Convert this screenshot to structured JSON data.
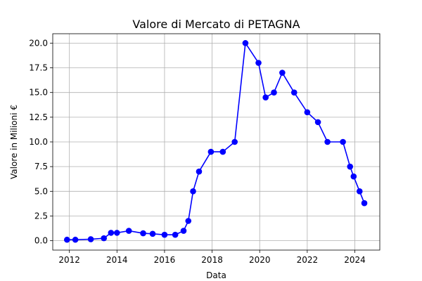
{
  "chart_data": {
    "type": "line",
    "title": "Valore di Mercato di PETAGNA",
    "xlabel": "Data",
    "ylabel": "Valore in Milioni €",
    "xlim": [
      2011.3,
      2025.05
    ],
    "ylim": [
      -0.95,
      20.95
    ],
    "xticks": [
      2012,
      2014,
      2016,
      2018,
      2020,
      2022,
      2024
    ],
    "yticks": [
      0.0,
      2.5,
      5.0,
      7.5,
      10.0,
      12.5,
      15.0,
      17.5,
      20.0
    ],
    "ytick_labels": [
      "0.0",
      "2.5",
      "5.0",
      "7.5",
      "10.0",
      "12.5",
      "15.0",
      "17.5",
      "20.0"
    ],
    "grid": true,
    "series": [
      {
        "color": "#0000ff",
        "marker": "circle",
        "points": [
          {
            "x": 2011.9,
            "y": 0.1
          },
          {
            "x": 2012.25,
            "y": 0.1
          },
          {
            "x": 2012.9,
            "y": 0.15
          },
          {
            "x": 2013.45,
            "y": 0.25
          },
          {
            "x": 2013.75,
            "y": 0.8
          },
          {
            "x": 2014.0,
            "y": 0.8
          },
          {
            "x": 2014.5,
            "y": 1.0
          },
          {
            "x": 2015.1,
            "y": 0.75
          },
          {
            "x": 2015.5,
            "y": 0.7
          },
          {
            "x": 2016.0,
            "y": 0.6
          },
          {
            "x": 2016.45,
            "y": 0.6
          },
          {
            "x": 2016.8,
            "y": 1.0
          },
          {
            "x": 2017.0,
            "y": 2.0
          },
          {
            "x": 2017.2,
            "y": 5.0
          },
          {
            "x": 2017.45,
            "y": 7.0
          },
          {
            "x": 2017.95,
            "y": 9.0
          },
          {
            "x": 2018.45,
            "y": 9.0
          },
          {
            "x": 2018.95,
            "y": 10.0
          },
          {
            "x": 2019.4,
            "y": 20.0
          },
          {
            "x": 2019.95,
            "y": 18.0
          },
          {
            "x": 2020.25,
            "y": 14.5
          },
          {
            "x": 2020.6,
            "y": 15.0
          },
          {
            "x": 2020.95,
            "y": 17.0
          },
          {
            "x": 2021.45,
            "y": 15.0
          },
          {
            "x": 2022.0,
            "y": 13.0
          },
          {
            "x": 2022.45,
            "y": 12.0
          },
          {
            "x": 2022.85,
            "y": 10.0
          },
          {
            "x": 2023.5,
            "y": 10.0
          },
          {
            "x": 2023.8,
            "y": 7.5
          },
          {
            "x": 2023.95,
            "y": 6.5
          },
          {
            "x": 2024.2,
            "y": 5.0
          },
          {
            "x": 2024.4,
            "y": 3.8
          }
        ]
      }
    ]
  }
}
